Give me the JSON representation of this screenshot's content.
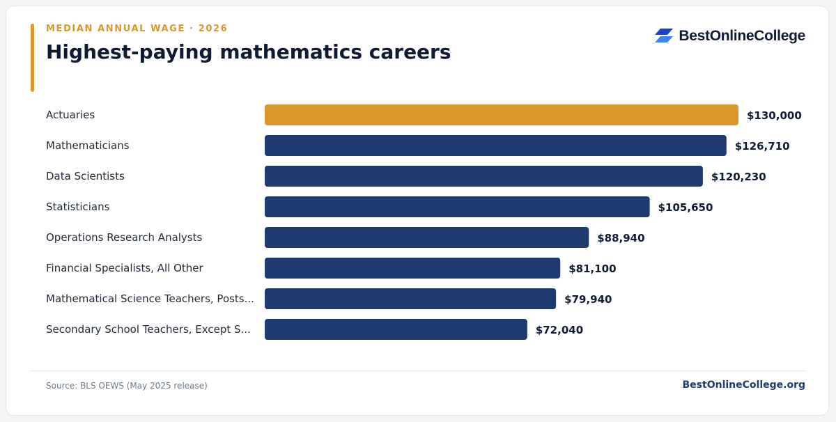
{
  "header": {
    "eyebrow": "MEDIAN ANNUAL WAGE · 2026",
    "title": "Highest-paying mathematics careers"
  },
  "brand": {
    "name": "BestOnlineCollege",
    "logo_icon": "stacked-parallelogram-logo-icon",
    "logo_colors": [
      "#1f3fd1",
      "#3b82f6"
    ]
  },
  "colors": {
    "highlight": "#d9992a",
    "bar": "#1e3a6e",
    "label": "#1f2937",
    "value": "#0f1a33"
  },
  "chart_data": {
    "type": "bar",
    "orientation": "horizontal",
    "categories": [
      "Actuaries",
      "Mathematicians",
      "Data Scientists",
      "Statisticians",
      "Operations Research Analysts",
      "Financial Specialists, All Other",
      "Mathematical Science Teachers, Posts...",
      "Secondary School Teachers, Except S..."
    ],
    "values": [
      130000,
      126710,
      120230,
      105650,
      88940,
      81100,
      79940,
      72040
    ],
    "value_labels": [
      "$130,000",
      "$126,710",
      "$120,230",
      "$105,650",
      "$88,940",
      "$81,100",
      "$79,940",
      "$72,040"
    ],
    "highlight_index": 0,
    "xlim": [
      0,
      130000
    ],
    "grid": false,
    "legend": "none"
  },
  "footer": {
    "source": "Source: BLS OEWS (May 2025 release)",
    "url": "BestOnlineCollege.org"
  }
}
